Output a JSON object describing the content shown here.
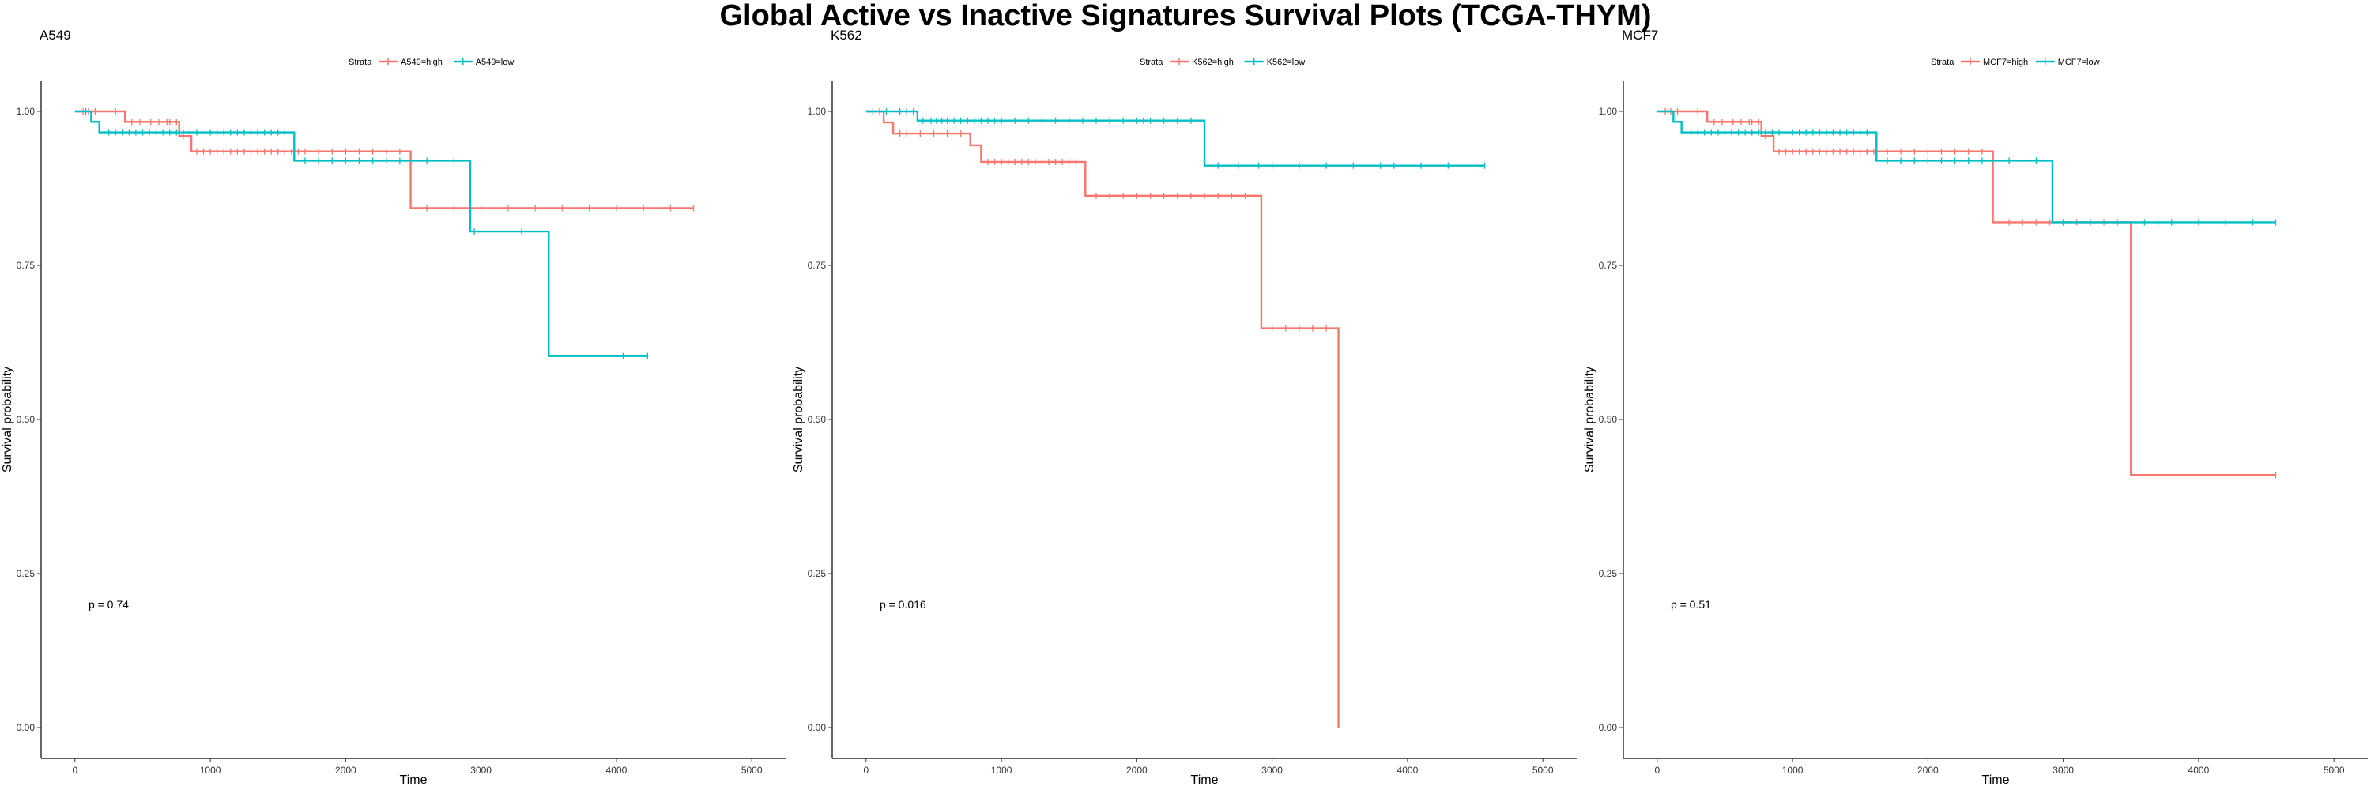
{
  "page_title": "Global Active vs Inactive Signatures Survival Plots (TCGA-THYM)",
  "colors": {
    "high": "#F8766D",
    "low": "#00BFC4"
  },
  "chart_data": [
    {
      "type": "line",
      "subtype": "kaplan-meier",
      "title": "A549",
      "xlabel": "Time",
      "ylabel": "Survival probability",
      "xlim": [
        -250,
        5250
      ],
      "ylim": [
        -0.05,
        1.05
      ],
      "x_ticks": [
        0,
        1000,
        2000,
        3000,
        4000,
        5000
      ],
      "x_tick_labels": [
        "0",
        "1000",
        "2000",
        "3000",
        "4000",
        "5000"
      ],
      "y_ticks": [
        0,
        0.25,
        0.5,
        0.75,
        1
      ],
      "y_tick_labels": [
        "0.00",
        "0.25",
        "0.50",
        "0.75",
        "1.00"
      ],
      "legend_title": "Strata",
      "legend_position": "top",
      "annotation": "p = 0.74",
      "annotation_pos": [
        100,
        0.2
      ],
      "series": [
        {
          "name": "A549=high",
          "color": "#F8766D",
          "steps": [
            [
              0,
              1.0
            ],
            [
              370,
              0.983
            ],
            [
              770,
              0.96
            ],
            [
              860,
              0.935
            ],
            [
              2480,
              0.843
            ],
            [
              4570,
              0.843
            ]
          ],
          "censor": [
            60,
            100,
            150,
            300,
            420,
            480,
            560,
            620,
            680,
            700,
            750,
            800,
            900,
            950,
            1000,
            1050,
            1100,
            1150,
            1200,
            1250,
            1300,
            1350,
            1400,
            1450,
            1500,
            1550,
            1600,
            1650,
            1700,
            1800,
            1900,
            2000,
            2100,
            2200,
            2300,
            2400,
            2600,
            2800,
            3000,
            3200,
            3400,
            3600,
            3800,
            4000,
            4200,
            4400,
            4570
          ]
        },
        {
          "name": "A549=low",
          "color": "#00BFC4",
          "steps": [
            [
              0,
              1.0
            ],
            [
              120,
              0.983
            ],
            [
              180,
              0.966
            ],
            [
              1620,
              0.92
            ],
            [
              2920,
              0.805
            ],
            [
              3500,
              0.603
            ],
            [
              4230,
              0.603
            ]
          ],
          "censor": [
            80,
            250,
            300,
            350,
            400,
            450,
            500,
            550,
            600,
            650,
            700,
            750,
            800,
            850,
            900,
            1000,
            1050,
            1100,
            1150,
            1200,
            1250,
            1300,
            1350,
            1400,
            1450,
            1500,
            1550,
            1700,
            1800,
            1900,
            2000,
            2100,
            2200,
            2300,
            2400,
            2600,
            2800,
            2950,
            3300,
            4050,
            4230
          ]
        }
      ]
    },
    {
      "type": "line",
      "subtype": "kaplan-meier",
      "title": "K562",
      "xlabel": "Time",
      "ylabel": "Survival probability",
      "xlim": [
        -250,
        5250
      ],
      "ylim": [
        -0.05,
        1.05
      ],
      "x_ticks": [
        0,
        1000,
        2000,
        3000,
        4000,
        5000
      ],
      "x_tick_labels": [
        "0",
        "1000",
        "2000",
        "3000",
        "4000",
        "5000"
      ],
      "y_ticks": [
        0,
        0.25,
        0.5,
        0.75,
        1
      ],
      "y_tick_labels": [
        "0.00",
        "0.25",
        "0.50",
        "0.75",
        "1.00"
      ],
      "legend_title": "Strata",
      "legend_position": "top",
      "annotation": "p = 0.016",
      "annotation_pos": [
        100,
        0.2
      ],
      "series": [
        {
          "name": "K562=high",
          "color": "#F8766D",
          "steps": [
            [
              0,
              1.0
            ],
            [
              130,
              0.982
            ],
            [
              200,
              0.964
            ],
            [
              770,
              0.945
            ],
            [
              850,
              0.918
            ],
            [
              1620,
              0.863
            ],
            [
              2920,
              0.648
            ],
            [
              3490,
              0.0
            ]
          ],
          "censor": [
            100,
            250,
            300,
            400,
            500,
            600,
            700,
            900,
            950,
            1000,
            1050,
            1100,
            1150,
            1200,
            1250,
            1300,
            1350,
            1400,
            1450,
            1500,
            1550,
            1700,
            1800,
            1900,
            2000,
            2100,
            2200,
            2300,
            2400,
            2500,
            2600,
            2700,
            2800,
            3000,
            3100,
            3200,
            3300,
            3400
          ]
        },
        {
          "name": "K562=low",
          "color": "#00BFC4",
          "steps": [
            [
              0,
              1.0
            ],
            [
              380,
              0.985
            ],
            [
              2500,
              0.912
            ],
            [
              4570,
              0.912
            ]
          ],
          "censor": [
            50,
            150,
            250,
            300,
            350,
            420,
            480,
            520,
            560,
            600,
            650,
            700,
            750,
            800,
            850,
            900,
            950,
            1000,
            1100,
            1200,
            1300,
            1400,
            1500,
            1600,
            1700,
            1800,
            1900,
            2000,
            2050,
            2100,
            2200,
            2300,
            2400,
            2600,
            2750,
            2900,
            3000,
            3200,
            3400,
            3600,
            3800,
            3900,
            4100,
            4300,
            4570
          ]
        }
      ]
    },
    {
      "type": "line",
      "subtype": "kaplan-meier",
      "title": "MCF7",
      "xlabel": "Time",
      "ylabel": "Survival probability",
      "xlim": [
        -250,
        5250
      ],
      "ylim": [
        -0.05,
        1.05
      ],
      "x_ticks": [
        0,
        1000,
        2000,
        3000,
        4000,
        5000
      ],
      "x_tick_labels": [
        "0",
        "1000",
        "2000",
        "3000",
        "4000",
        "5000"
      ],
      "y_ticks": [
        0,
        0.25,
        0.5,
        0.75,
        1
      ],
      "y_tick_labels": [
        "0.00",
        "0.25",
        "0.50",
        "0.75",
        "1.00"
      ],
      "legend_title": "Strata",
      "legend_position": "top",
      "annotation": "p = 0.51",
      "annotation_pos": [
        100,
        0.2
      ],
      "series": [
        {
          "name": "MCF7=high",
          "color": "#F8766D",
          "steps": [
            [
              0,
              1.0
            ],
            [
              370,
              0.983
            ],
            [
              770,
              0.96
            ],
            [
              860,
              0.935
            ],
            [
              2480,
              0.82
            ],
            [
              3500,
              0.41
            ],
            [
              4570,
              0.41
            ]
          ],
          "censor": [
            60,
            100,
            150,
            300,
            420,
            480,
            560,
            620,
            680,
            700,
            750,
            800,
            900,
            950,
            1000,
            1050,
            1100,
            1150,
            1200,
            1250,
            1300,
            1350,
            1400,
            1450,
            1500,
            1550,
            1600,
            1700,
            1800,
            1900,
            2000,
            2100,
            2200,
            2300,
            2400,
            2600,
            2700,
            2800,
            2900,
            3000,
            3100,
            3200,
            3300,
            4570
          ]
        },
        {
          "name": "MCF7=low",
          "color": "#00BFC4",
          "steps": [
            [
              0,
              1.0
            ],
            [
              120,
              0.983
            ],
            [
              180,
              0.966
            ],
            [
              1620,
              0.92
            ],
            [
              2920,
              0.82
            ],
            [
              4570,
              0.82
            ]
          ],
          "censor": [
            80,
            250,
            300,
            350,
            400,
            450,
            500,
            550,
            600,
            650,
            700,
            750,
            800,
            850,
            900,
            1000,
            1050,
            1100,
            1150,
            1200,
            1250,
            1300,
            1350,
            1400,
            1450,
            1500,
            1550,
            1700,
            1800,
            1900,
            2000,
            2100,
            2200,
            2300,
            2400,
            2600,
            2800,
            3000,
            3200,
            3400,
            3600,
            3700,
            3800,
            4000,
            4200,
            4400,
            4570
          ]
        }
      ]
    }
  ]
}
